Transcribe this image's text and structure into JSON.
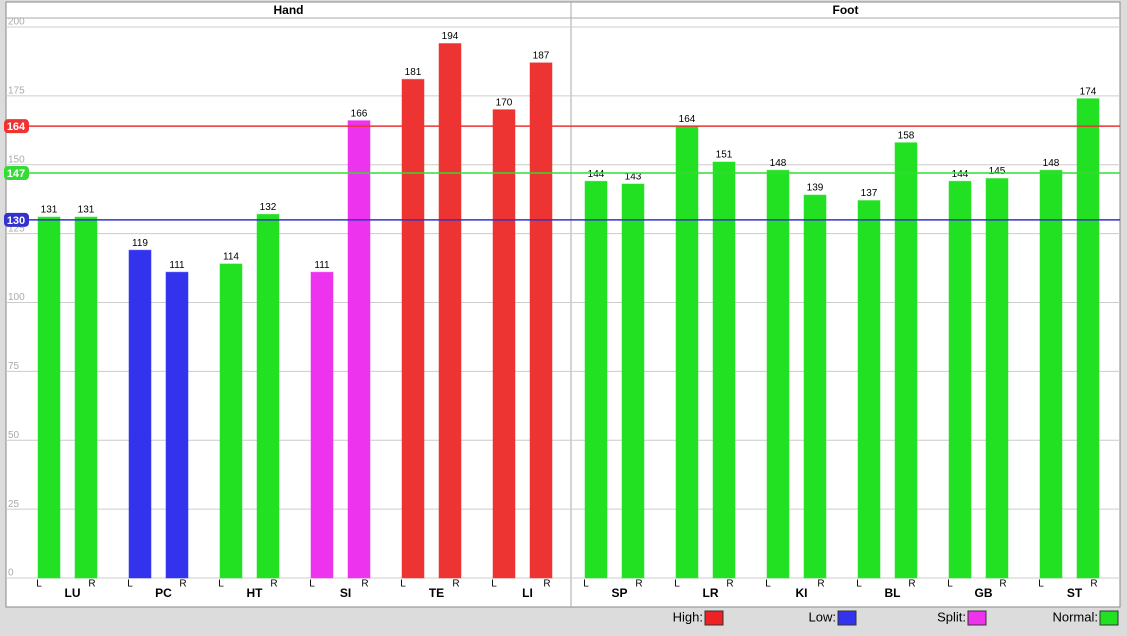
{
  "chart_data": {
    "type": "bar",
    "ylim": [
      0,
      200
    ],
    "yticks": [
      0,
      25,
      50,
      75,
      100,
      125,
      150,
      175,
      200
    ],
    "grid": true,
    "sides": [
      "L",
      "R"
    ],
    "panels": [
      {
        "title": "Hand",
        "groups": [
          {
            "label": "LU",
            "values": [
              131,
              131
            ],
            "color": "#22e022"
          },
          {
            "label": "PC",
            "values": [
              119,
              111
            ],
            "color": "#3333ee"
          },
          {
            "label": "HT",
            "values": [
              114,
              132
            ],
            "color": "#22e022"
          },
          {
            "label": "SI",
            "values": [
              111,
              166
            ],
            "color": "#ee33ee"
          },
          {
            "label": "TE",
            "values": [
              181,
              194
            ],
            "color": "#ee3333"
          },
          {
            "label": "LI",
            "values": [
              170,
              187
            ],
            "color": "#ee3333"
          }
        ]
      },
      {
        "title": "Foot",
        "groups": [
          {
            "label": "SP",
            "values": [
              144,
              143
            ],
            "color": "#22e022"
          },
          {
            "label": "LR",
            "values": [
              164,
              151
            ],
            "color": "#22e022"
          },
          {
            "label": "KI",
            "values": [
              148,
              139
            ],
            "color": "#22e022"
          },
          {
            "label": "BL",
            "values": [
              137,
              158
            ],
            "color": "#22e022"
          },
          {
            "label": "GB",
            "values": [
              144,
              145
            ],
            "color": "#22e022"
          },
          {
            "label": "ST",
            "values": [
              148,
              174
            ],
            "color": "#22e022"
          }
        ]
      }
    ],
    "reference_lines": [
      {
        "value": 164,
        "color": "#ee3333"
      },
      {
        "value": 147,
        "color": "#33dd33"
      },
      {
        "value": 130,
        "color": "#3333cc"
      }
    ],
    "legend": [
      {
        "label": "High:",
        "color": "#ee2222"
      },
      {
        "label": "Low:",
        "color": "#3333ee"
      },
      {
        "label": "Split:",
        "color": "#ee33ee"
      },
      {
        "label": "Normal:",
        "color": "#22e022"
      }
    ]
  }
}
